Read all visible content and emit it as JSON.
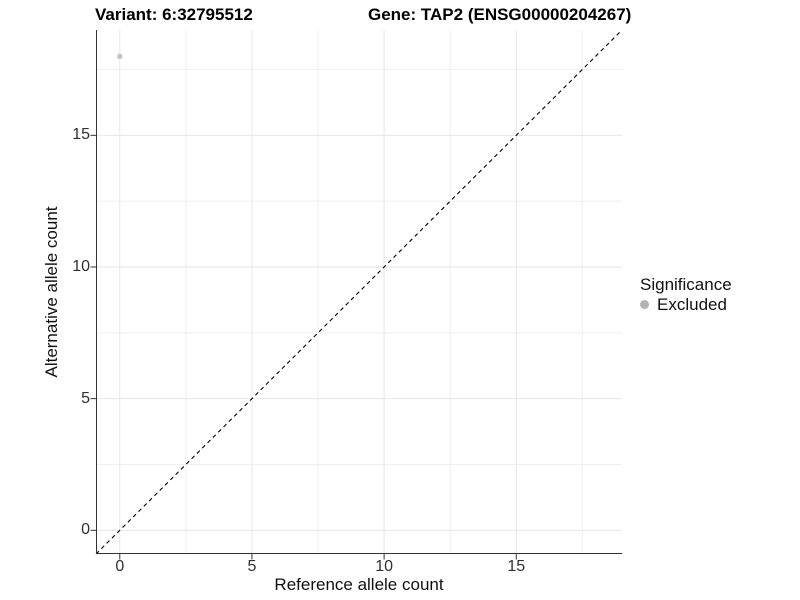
{
  "chart_data": {
    "type": "scatter",
    "titles": [
      "Variant: 6:32795512",
      "Gene: TAP2 (ENSG00000204267)"
    ],
    "xlabel": "Reference allele count",
    "ylabel": "Alternative allele count",
    "xlim": [
      -0.9,
      19
    ],
    "ylim": [
      -0.9,
      19
    ],
    "x_ticks": [
      0,
      5,
      10,
      15
    ],
    "y_ticks": [
      0,
      5,
      10,
      15
    ],
    "x_minor_ticks": [
      2.5,
      7.5,
      12.5,
      17.5
    ],
    "y_minor_ticks": [
      2.5,
      7.5,
      12.5,
      17.5
    ],
    "grid": true,
    "points": [
      {
        "x": 0,
        "y": 18,
        "series": "Excluded"
      }
    ],
    "identity_line": {
      "from": -0.9,
      "to": 19,
      "style": "dashed"
    },
    "legend": {
      "title": "Significance",
      "position": "right",
      "entries": [
        {
          "label": "Excluded",
          "color": "#b3b3b3"
        }
      ]
    },
    "colors": {
      "point": "#c4c4c4",
      "legend_key": "#b3b3b3",
      "grid_major": "#e6e6e6",
      "grid_minor": "#efefef",
      "axis": "#333333",
      "dashed_line": "#000000"
    }
  }
}
